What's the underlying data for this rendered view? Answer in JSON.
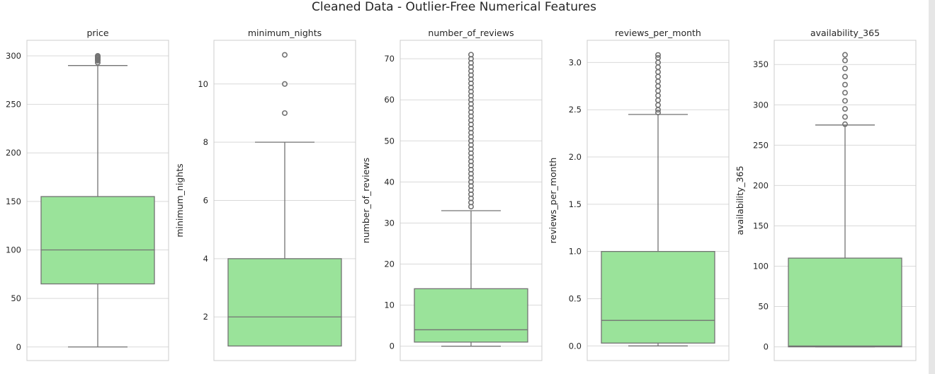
{
  "figure": {
    "title": "Cleaned Data - Outlier-Free Numerical Features",
    "box_fill": "#9ae39a",
    "line_color": "#737373",
    "grid_color": "#d9d9d9"
  },
  "chart_data": [
    {
      "type": "box",
      "title": "price",
      "ylabel": "",
      "ylim": [
        -14,
        316
      ],
      "yticks": [
        0,
        50,
        100,
        150,
        200,
        250,
        300
      ],
      "box": {
        "whisker_low": 0,
        "q1": 65,
        "median": 100,
        "q3": 155,
        "whisker_high": 290
      },
      "fliers": [
        293,
        295,
        296,
        297,
        298,
        299,
        300
      ],
      "grid": true
    },
    {
      "type": "box",
      "title": "minimum_nights",
      "ylabel": "minimum_nights",
      "ylim": [
        0.5,
        11.5
      ],
      "yticks": [
        2,
        4,
        6,
        8,
        10
      ],
      "box": {
        "whisker_low": 1,
        "q1": 1,
        "median": 2,
        "q3": 4,
        "whisker_high": 8
      },
      "fliers": [
        9,
        10,
        11
      ],
      "grid": true
    },
    {
      "type": "box",
      "title": "number_of_reviews",
      "ylabel": "number_of_reviews",
      "ylim": [
        -3.5,
        74.5
      ],
      "yticks": [
        0,
        10,
        20,
        30,
        40,
        50,
        60,
        70
      ],
      "box": {
        "whisker_low": 0,
        "q1": 1,
        "median": 4,
        "q3": 14,
        "whisker_high": 33
      },
      "fliers": [
        34,
        35,
        36,
        37,
        38,
        39,
        40,
        41,
        42,
        43,
        44,
        45,
        46,
        47,
        48,
        49,
        50,
        51,
        52,
        53,
        54,
        55,
        56,
        57,
        58,
        59,
        60,
        61,
        62,
        63,
        64,
        65,
        66,
        67,
        68,
        69,
        70,
        71
      ],
      "grid": true
    },
    {
      "type": "box",
      "title": "reviews_per_month",
      "ylabel": "reviews_per_month",
      "ylim": [
        -0.155,
        3.235
      ],
      "yticks": [
        0.0,
        0.5,
        1.0,
        1.5,
        2.0,
        2.5,
        3.0
      ],
      "box": {
        "whisker_low": 0,
        "q1": 0.03,
        "median": 0.27,
        "q3": 1.0,
        "whisker_high": 2.45
      },
      "fliers": [
        2.47,
        2.5,
        2.55,
        2.6,
        2.65,
        2.7,
        2.75,
        2.8,
        2.85,
        2.9,
        2.95,
        3.0,
        3.05,
        3.08
      ],
      "grid": true
    },
    {
      "type": "box",
      "title": "availability_365",
      "ylabel": "availability_365",
      "ylim": [
        -17,
        380
      ],
      "yticks": [
        0,
        50,
        100,
        150,
        200,
        250,
        300,
        350
      ],
      "box": {
        "whisker_low": 0,
        "q1": 0,
        "median": 1,
        "q3": 110,
        "whisker_high": 275
      },
      "fliers": [
        276,
        285,
        295,
        305,
        315,
        325,
        335,
        345,
        355,
        362
      ],
      "grid": true
    }
  ]
}
